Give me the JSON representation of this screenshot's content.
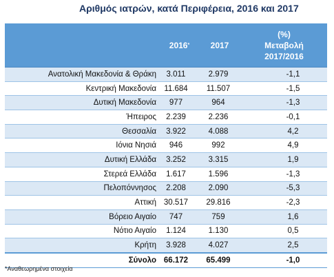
{
  "chart_data": {
    "type": "table",
    "title": "Αριθμός ιατρών, κατά Περιφέρεια, 2016 και 2017",
    "columns": [
      "2016",
      "2017",
      "(%) Μεταβολή 2017/2016"
    ],
    "column_2016_mark": "*",
    "change_header_lines": [
      "(%)",
      "Μεταβολή",
      "2017/2016"
    ],
    "rows": [
      {
        "region": "Ανατολική Μακεδονία & Θράκη",
        "v2016": "3.011",
        "v2017": "2.979",
        "change": "-1,1"
      },
      {
        "region": "Κεντρική Μακεδονία",
        "v2016": "11.684",
        "v2017": "11.507",
        "change": "-1,5"
      },
      {
        "region": "Δυτική Μακεδονία",
        "v2016": "977",
        "v2017": "964",
        "change": "-1,3"
      },
      {
        "region": "Ήπειρος",
        "v2016": "2.239",
        "v2017": "2.236",
        "change": "-0,1"
      },
      {
        "region": "Θεσσαλία",
        "v2016": "3.922",
        "v2017": "4.088",
        "change": "4,2"
      },
      {
        "region": "Ιόνια Νησιά",
        "v2016": "946",
        "v2017": "992",
        "change": "4,9"
      },
      {
        "region": "Δυτική Ελλάδα",
        "v2016": "3.252",
        "v2017": "3.315",
        "change": "1,9"
      },
      {
        "region": "Στερεά Ελλάδα",
        "v2016": "1.617",
        "v2017": "1.596",
        "change": "-1,3"
      },
      {
        "region": "Πελοπόννησος",
        "v2016": "2.208",
        "v2017": "2.090",
        "change": "-5,3"
      },
      {
        "region": "Αττική",
        "v2016": "30.517",
        "v2017": "29.816",
        "change": "-2,3"
      },
      {
        "region": "Βόρειο Αιγαίο",
        "v2016": "747",
        "v2017": "759",
        "change": "1,6"
      },
      {
        "region": "Νότιο Αιγαίο",
        "v2016": "1.124",
        "v2017": "1.130",
        "change": "0,5"
      },
      {
        "region": "Κρήτη",
        "v2016": "3.928",
        "v2017": "4.027",
        "change": "2,5"
      }
    ],
    "total": {
      "region": "Σύνολο",
      "v2016": "66.172",
      "v2017": "65.499",
      "change": "-1,0"
    },
    "footnote": "*Αναθεωρημένα στοιχεία"
  },
  "colors": {
    "header_background": "#5b9bd5",
    "row_band": "#dbe8f5",
    "title": "#1f3864"
  }
}
